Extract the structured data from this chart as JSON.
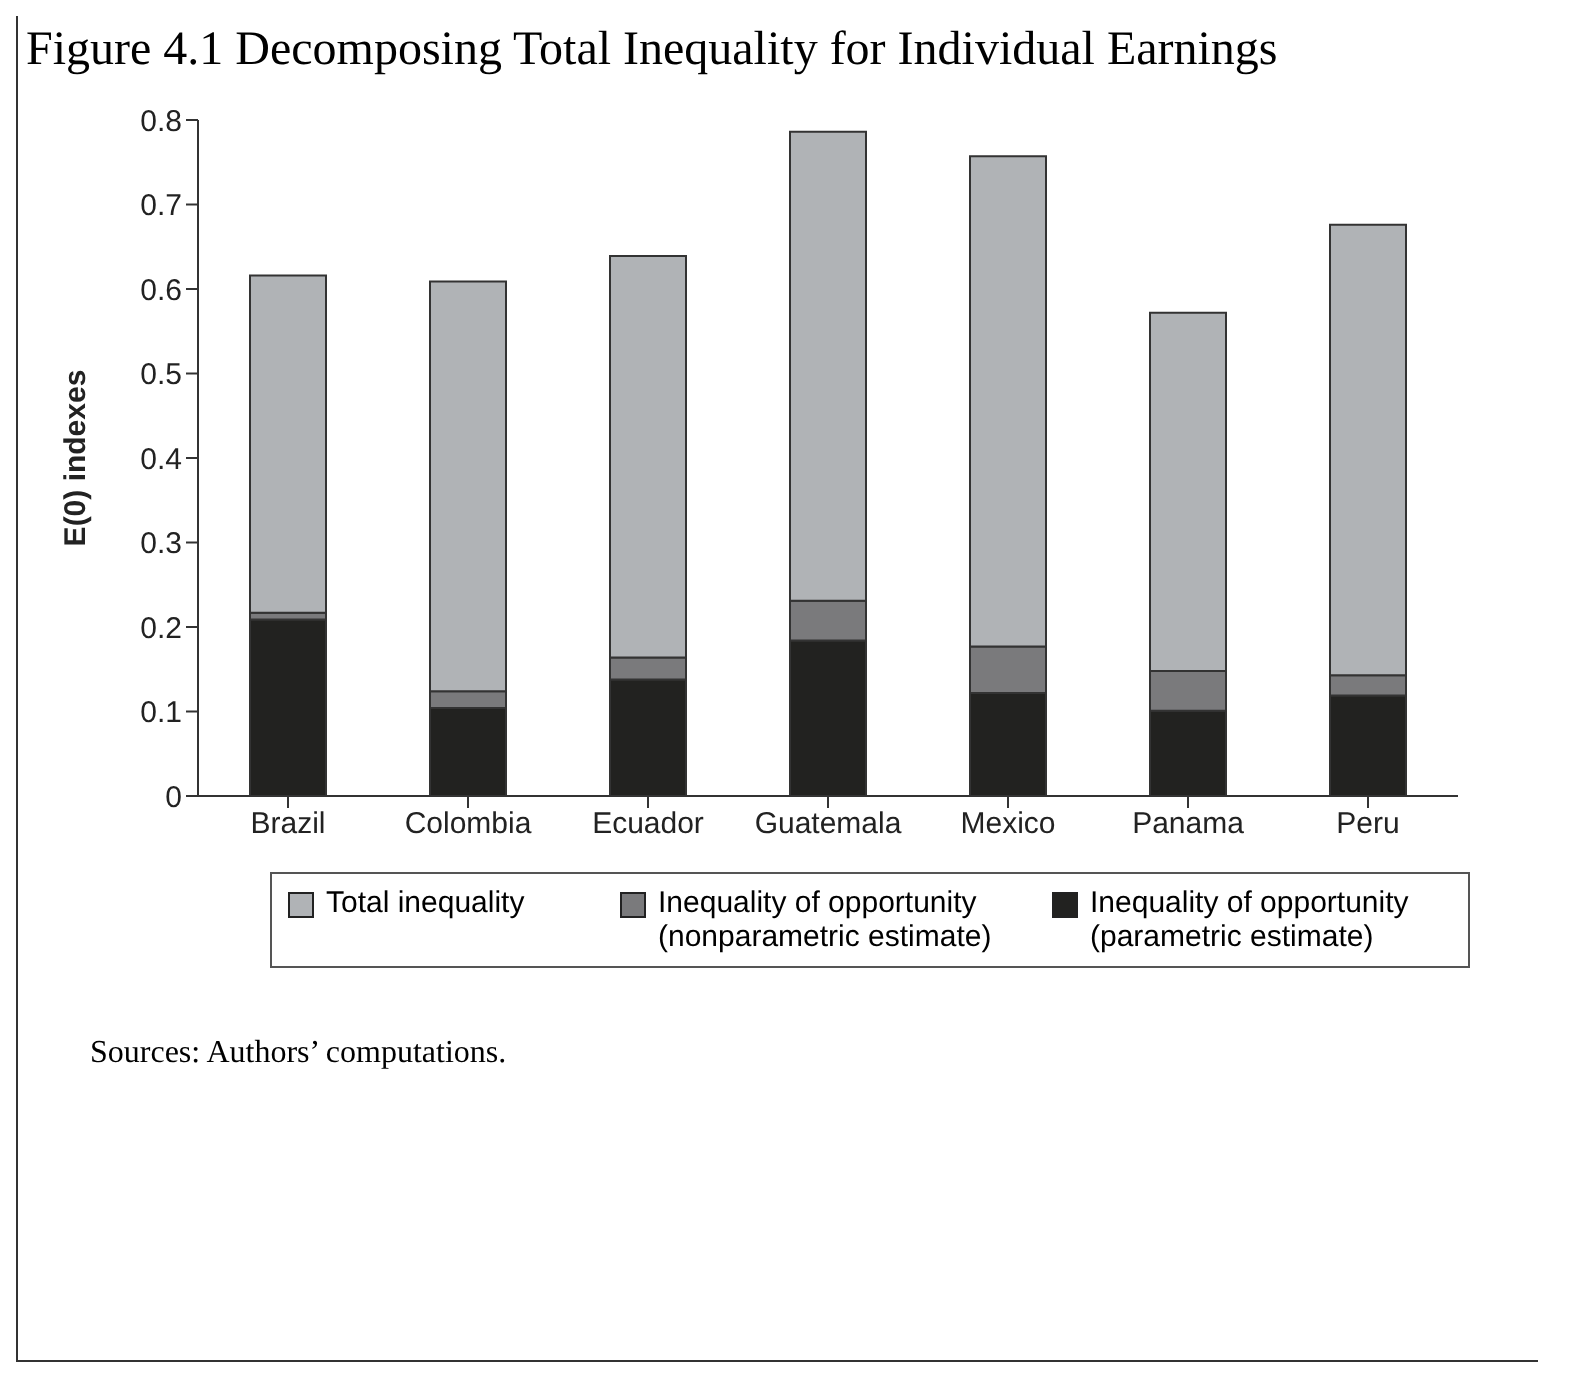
{
  "chart_data": {
    "type": "bar",
    "title": "Figure 4.1 Decomposing Total Inequality for Individual Earnings",
    "ylabel": "E(0) indexes",
    "categories": [
      "Brazil",
      "Colombia",
      "Ecuador",
      "Guatemala",
      "Mexico",
      "Panama",
      "Peru"
    ],
    "series": [
      {
        "name": "Inequality of opportunity (parametric estimate)",
        "color": "#222220",
        "values": [
          0.209,
          0.104,
          0.138,
          0.184,
          0.122,
          0.101,
          0.119
        ]
      },
      {
        "name": "Inequality of opportunity (nonparametric estimate)",
        "color": "#7a7a7c",
        "values": [
          0.008,
          0.02,
          0.026,
          0.047,
          0.055,
          0.047,
          0.024
        ]
      },
      {
        "name": "Total inequality",
        "color": "#b0b3b6",
        "values": [
          0.399,
          0.485,
          0.475,
          0.555,
          0.58,
          0.424,
          0.533
        ]
      }
    ],
    "stacked": true,
    "ylim": [
      0,
      0.8
    ],
    "yticks": [
      0,
      0.1,
      0.2,
      0.3,
      0.4,
      0.5,
      0.6,
      0.7,
      0.8
    ],
    "grid": false,
    "legend": "bottom",
    "annotations": [
      "Sources: Authors’ computations."
    ]
  }
}
